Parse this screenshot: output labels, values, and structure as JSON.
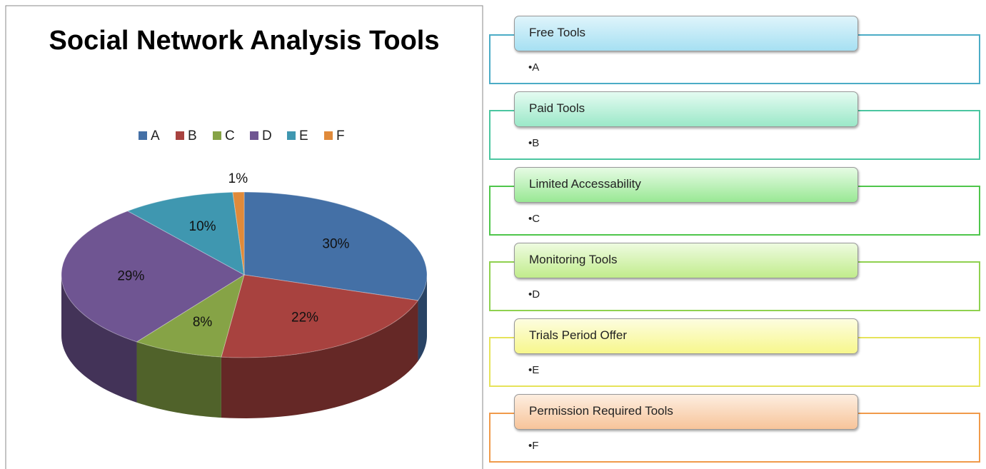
{
  "chart_data": {
    "type": "pie",
    "title": "Social Network Analysis Tools",
    "categories": [
      "A",
      "B",
      "C",
      "D",
      "E",
      "F"
    ],
    "values": [
      30,
      22,
      8,
      29,
      10,
      1
    ],
    "value_labels": [
      "30%",
      "22%",
      "8%",
      "29%",
      "10%",
      "1%"
    ],
    "colors": [
      "#4470a6",
      "#a8423f",
      "#86a346",
      "#6f5592",
      "#3f97b0",
      "#e08a3a"
    ],
    "legend": "top"
  },
  "tool_groups": [
    {
      "title": "Free Tools",
      "item": "A"
    },
    {
      "title": "Paid Tools",
      "item": "B"
    },
    {
      "title": "Limited Accessability",
      "item": "C"
    },
    {
      "title": "Monitoring  Tools",
      "item": "D"
    },
    {
      "title": "Trials  Period Offer",
      "item": "E"
    },
    {
      "title": "Permission Required Tools",
      "item": "F"
    }
  ]
}
